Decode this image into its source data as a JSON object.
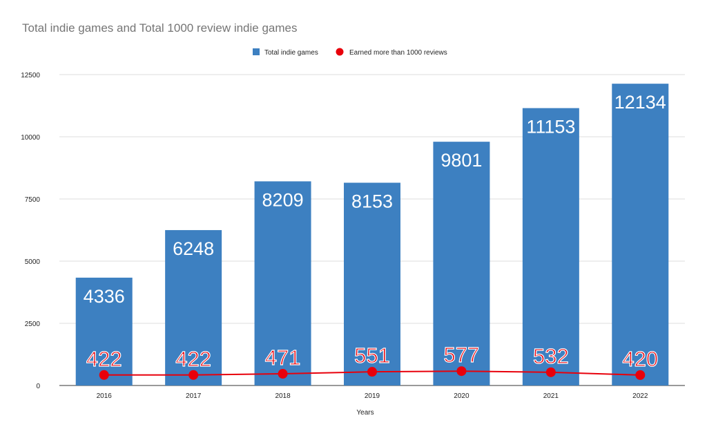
{
  "chart_data": {
    "type": "bar",
    "title": "Total indie games and Total 1000 review indie games",
    "xlabel": "Years",
    "ylabel": "",
    "categories": [
      "2016",
      "2017",
      "2018",
      "2019",
      "2020",
      "2021",
      "2022"
    ],
    "ylim": [
      0,
      12500
    ],
    "yticks": [
      "0",
      "2500",
      "5000",
      "7500",
      "10000",
      "12500"
    ],
    "grid": true,
    "legend_position": "top",
    "series": [
      {
        "name": "Total indie games",
        "type": "bar",
        "color": "#3d80c1",
        "values": [
          4336,
          6248,
          8209,
          8153,
          9801,
          11153,
          12134
        ]
      },
      {
        "name": "Earned more than 1000 reviews",
        "type": "line",
        "color": "#e8000b",
        "values": [
          422,
          422,
          471,
          551,
          577,
          532,
          420
        ]
      }
    ]
  }
}
